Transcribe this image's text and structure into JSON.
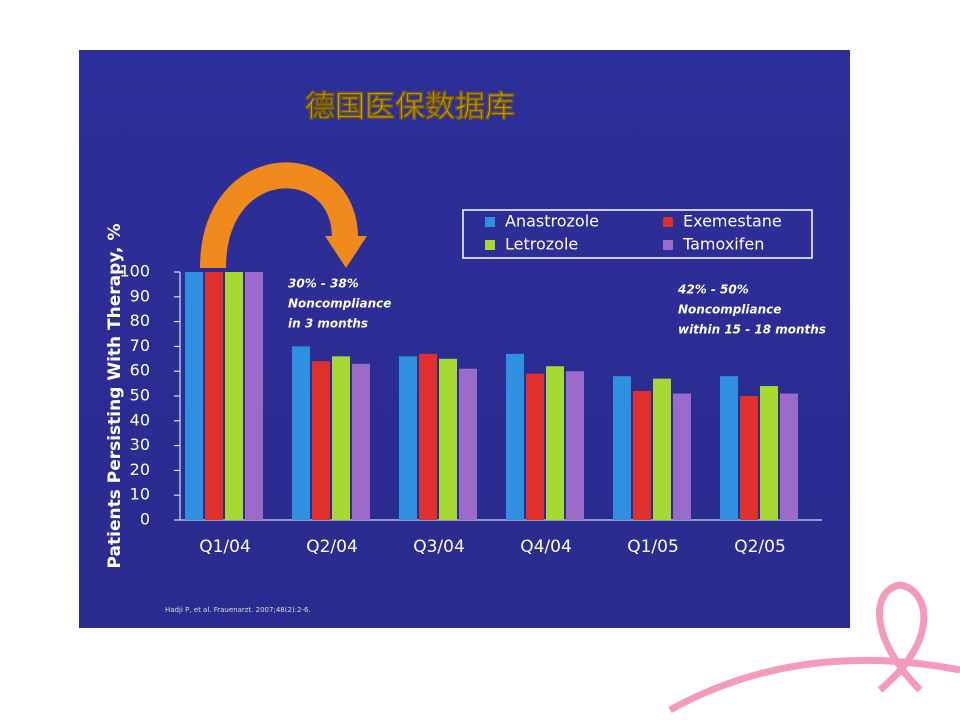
{
  "chart_data": {
    "type": "bar",
    "title": "德国医保数据库",
    "y_label": "Patients Persisting With Therapy, %",
    "categories": [
      "Q1/04",
      "Q2/04",
      "Q3/04",
      "Q4/04",
      "Q1/05",
      "Q2/05"
    ],
    "series": [
      {
        "name": "Anastrozole",
        "color": "#2f8fe0",
        "values": [
          100,
          70,
          66,
          67,
          58,
          58
        ]
      },
      {
        "name": "Exemestane",
        "color": "#e0302e",
        "values": [
          100,
          64,
          67,
          59,
          52,
          50
        ]
      },
      {
        "name": "Letrozole",
        "color": "#a6d934",
        "values": [
          100,
          66,
          65,
          62,
          57,
          54
        ]
      },
      {
        "name": "Tamoxifen",
        "color": "#9b6bc9",
        "values": [
          100,
          63,
          61,
          60,
          51,
          51
        ]
      }
    ],
    "ylim": [
      0,
      100
    ],
    "yticks": [
      0,
      10,
      20,
      30,
      40,
      50,
      60,
      70,
      80,
      90,
      100
    ],
    "grid": false,
    "annotations": [
      [
        "30% - 38%",
        "Noncompliance",
        "in 3 months"
      ],
      [
        "42% - 50%",
        "Noncompliance",
        "within 15 - 18 months"
      ]
    ],
    "source": "Hadji P, et al. Frauenarzt. 2007;48(2):2-6."
  }
}
